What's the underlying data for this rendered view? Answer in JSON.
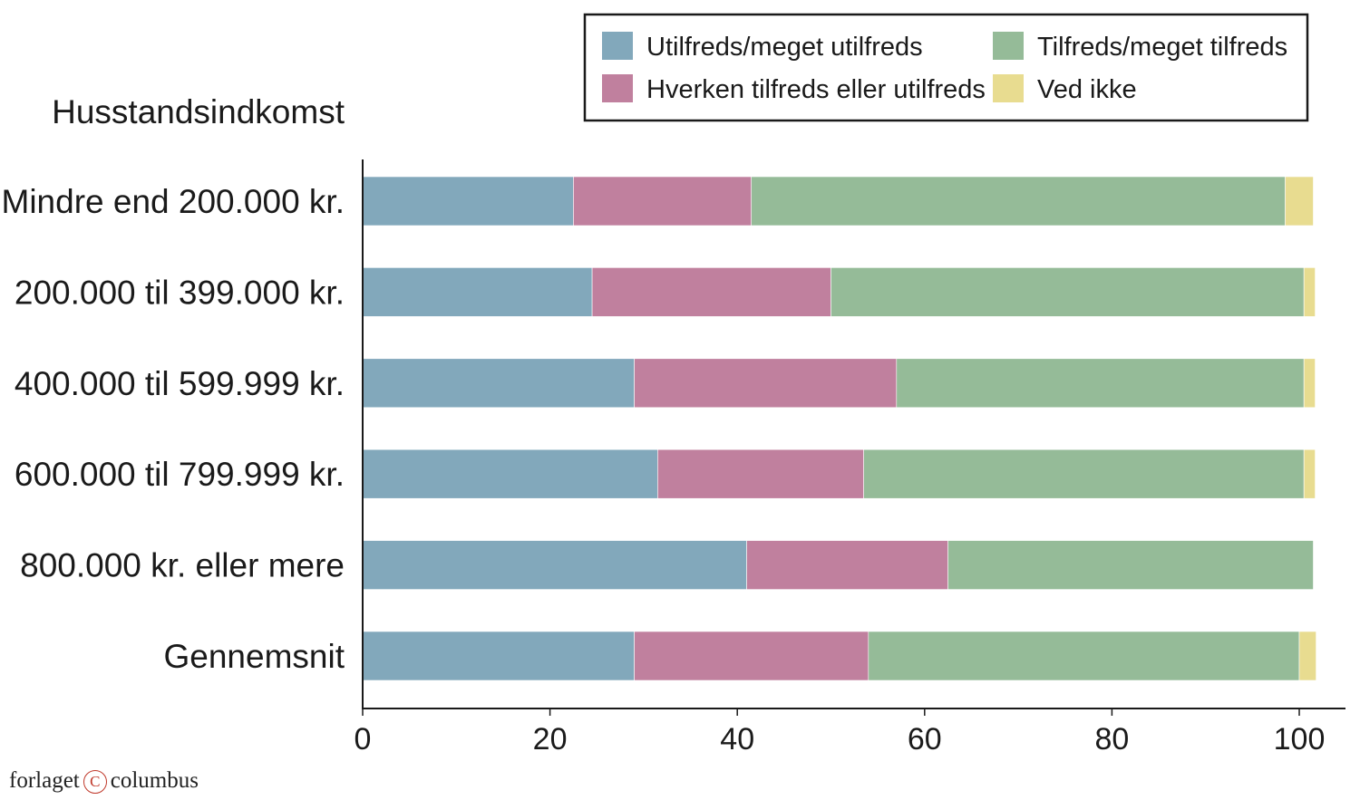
{
  "chart_data": {
    "type": "bar",
    "orientation": "horizontal",
    "stacked": true,
    "title": "",
    "ylabel": "Husstandsindkomst",
    "xlabel": "",
    "xlim": [
      0,
      100
    ],
    "xticks": [
      "0",
      "20",
      "40",
      "60",
      "80",
      "100"
    ],
    "categories": [
      "Mindre end 200.000 kr.",
      "200.000 til 399.000 kr.",
      "400.000 til 599.999 kr.",
      "600.000 til 799.999 kr.",
      "800.000 kr. eller mere",
      "Gennemsnit"
    ],
    "series": [
      {
        "name": "Utilfreds/meget utilfreds",
        "color": "#82a8bb",
        "values": [
          22.5,
          24.5,
          29,
          31.5,
          41,
          29
        ]
      },
      {
        "name": "Hverken tilfreds eller utilfreds",
        "color": "#c0809e",
        "values": [
          19,
          25.5,
          28,
          22,
          21.5,
          25
        ]
      },
      {
        "name": "Tilfreds/meget tilfreds",
        "color": "#95bb98",
        "values": [
          57,
          50.5,
          43.5,
          47,
          39,
          46
        ]
      },
      {
        "name": "Ved ikke",
        "color": "#e8dc90",
        "values": [
          3,
          1.2,
          1.2,
          1.2,
          0,
          1.8
        ]
      }
    ],
    "legend_position": "top-right",
    "grid": false
  },
  "footer": {
    "brand_left": "forlaget",
    "brand_symbol": "C",
    "brand_right": "columbus"
  }
}
